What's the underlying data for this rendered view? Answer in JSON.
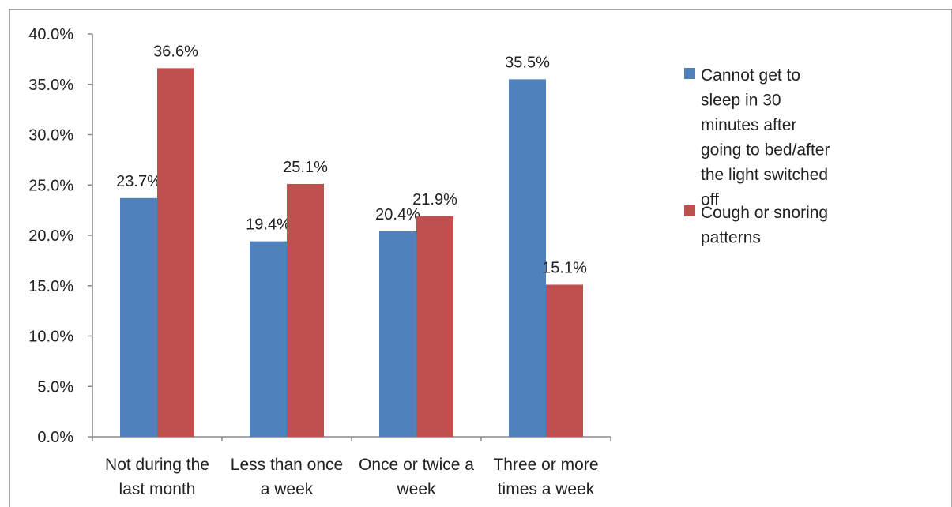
{
  "chart_data": {
    "type": "bar",
    "categories": [
      [
        "Not during the",
        "last month"
      ],
      [
        "Less than once",
        "a week"
      ],
      [
        "Once or twice a",
        "week"
      ],
      [
        "Three or more",
        "times a week"
      ]
    ],
    "series": [
      {
        "name": [
          "Cannot get to",
          "sleep in 30",
          "minutes after",
          "going to bed/after",
          "the light switched",
          "off"
        ],
        "color": "#4F81BD",
        "values": [
          23.7,
          19.4,
          20.4,
          35.5
        ],
        "labels": [
          "23.7%",
          "19.4%",
          "20.4%",
          "35.5%"
        ]
      },
      {
        "name": [
          "Cough or snoring",
          "patterns"
        ],
        "color": "#C0504D",
        "values": [
          36.6,
          25.1,
          21.9,
          15.1
        ],
        "labels": [
          "36.6%",
          "25.1%",
          "21.9%",
          "15.1%"
        ]
      }
    ],
    "ylim": [
      0,
      40
    ],
    "yticks": [
      "0.0%",
      "5.0%",
      "10.0%",
      "15.0%",
      "20.0%",
      "25.0%",
      "30.0%",
      "35.0%",
      "40.0%"
    ],
    "grid": false,
    "legend_position": "right"
  }
}
